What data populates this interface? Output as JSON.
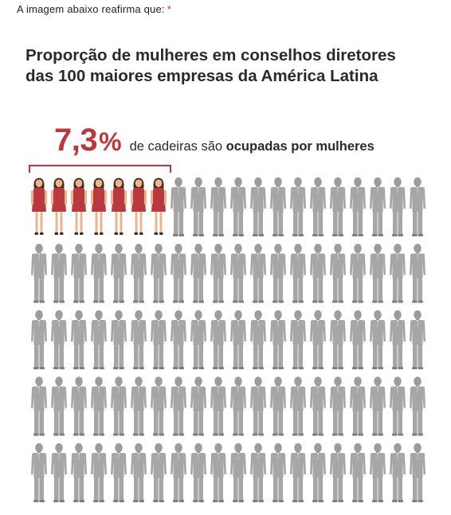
{
  "question": {
    "label": "A imagem abaixo reafirma que:",
    "required_mark": "*"
  },
  "infographic": {
    "title": "Proporção de mulheres em conselhos diretores das 100 maiores empresas da América Latina",
    "stat_value": "7,3",
    "stat_unit": "%",
    "stat_text_plain": "de cadeiras são",
    "stat_text_bold": "ocupadas por mulheres",
    "colors": {
      "accent": "#b8393f",
      "woman_dress": "#b8393f",
      "man_suit": "#a6a6a6"
    }
  },
  "chart_data": {
    "type": "pictogram",
    "rows": 5,
    "columns": 20,
    "total_figures": 100,
    "women_figures": 7,
    "men_figures": 93,
    "value_percent": 7.3
  }
}
